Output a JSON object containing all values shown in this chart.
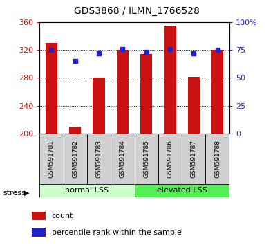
{
  "title": "GDS3868 / ILMN_1766528",
  "samples": [
    "GSM591781",
    "GSM591782",
    "GSM591783",
    "GSM591784",
    "GSM591785",
    "GSM591786",
    "GSM591787",
    "GSM591788"
  ],
  "counts": [
    330,
    210,
    280,
    320,
    314,
    355,
    281,
    320
  ],
  "percentile_ranks": [
    75,
    65,
    72,
    76,
    73,
    76,
    72,
    75
  ],
  "ylim_left": [
    200,
    360
  ],
  "ylim_right": [
    0,
    100
  ],
  "yticks_left": [
    200,
    240,
    280,
    320,
    360
  ],
  "yticks_right": [
    0,
    25,
    50,
    75,
    100
  ],
  "bar_color": "#cc1111",
  "dot_color": "#2222cc",
  "bar_bottom": 200,
  "groups": [
    {
      "label": "normal LSS",
      "start": 0,
      "end": 4,
      "color": "#ccffcc"
    },
    {
      "label": "elevated LSS",
      "start": 4,
      "end": 8,
      "color": "#55ee55"
    }
  ],
  "stress_label": "stress",
  "legend_count": "count",
  "legend_percentile": "percentile rank within the sample",
  "grid_lines": [
    240,
    280,
    320
  ]
}
